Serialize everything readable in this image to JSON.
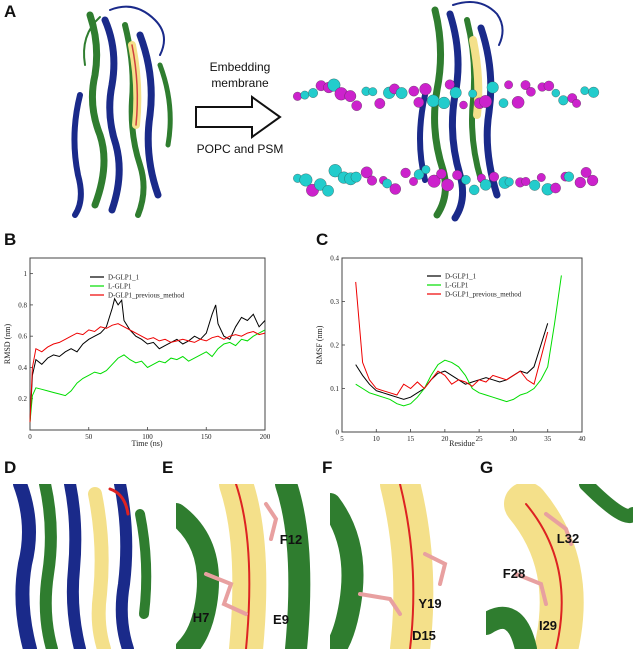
{
  "panels": {
    "A": "A",
    "B": "B",
    "C": "C",
    "D": "D",
    "E": "E",
    "F": "F",
    "G": "G"
  },
  "panel_a": {
    "arrow_line1": "Embedding",
    "arrow_line2": "membrane",
    "arrow_caption": "POPC and PSM"
  },
  "residue_labels": {
    "E": [
      "F12",
      "H7",
      "E9"
    ],
    "F": [
      "Y19",
      "D15"
    ],
    "G": [
      "L32",
      "F28",
      "I29"
    ]
  },
  "colors": {
    "black_series": "#000000",
    "green_series": "#00dd00",
    "red_series": "#ee0000",
    "lipid_magenta": "#cc22cc",
    "lipid_cyan": "#22cccc",
    "helix_blue": "#1a2a8a",
    "helix_green": "#2f7d2f",
    "peptide_yellow": "#f4e08a"
  },
  "chart_data": [
    {
      "type": "line",
      "panel": "B",
      "xlabel": "Time (ns)",
      "ylabel": "RMSD (nm)",
      "xlim": [
        0,
        200
      ],
      "ylim": [
        0,
        1.1
      ],
      "xticks": [
        0,
        50,
        100,
        150,
        200
      ],
      "yticks": [
        0.2,
        0.4,
        0.6,
        0.8,
        1
      ],
      "legend": [
        "D-GLP1_1",
        "L-GLP1",
        "D-GLP1_previous_method"
      ],
      "legend_position": "top-center",
      "series": [
        {
          "name": "D-GLP1_1",
          "color": "#000000",
          "x": [
            0,
            2,
            5,
            10,
            15,
            20,
            25,
            30,
            35,
            40,
            45,
            50,
            55,
            60,
            65,
            70,
            72,
            75,
            78,
            80,
            85,
            90,
            95,
            100,
            105,
            110,
            115,
            120,
            125,
            130,
            135,
            140,
            145,
            150,
            155,
            158,
            160,
            165,
            170,
            175,
            180,
            185,
            190,
            195,
            200
          ],
          "y": [
            0.05,
            0.35,
            0.45,
            0.42,
            0.46,
            0.48,
            0.47,
            0.5,
            0.52,
            0.5,
            0.55,
            0.58,
            0.6,
            0.62,
            0.66,
            0.78,
            0.84,
            0.8,
            0.83,
            0.7,
            0.64,
            0.6,
            0.58,
            0.55,
            0.56,
            0.52,
            0.54,
            0.56,
            0.58,
            0.55,
            0.57,
            0.6,
            0.58,
            0.62,
            0.74,
            0.8,
            0.68,
            0.6,
            0.58,
            0.66,
            0.72,
            0.7,
            0.74,
            0.66,
            0.7
          ]
        },
        {
          "name": "L-GLP1",
          "color": "#00dd00",
          "x": [
            0,
            2,
            5,
            10,
            15,
            20,
            25,
            30,
            35,
            40,
            45,
            50,
            55,
            60,
            65,
            70,
            75,
            80,
            85,
            90,
            95,
            100,
            105,
            110,
            115,
            120,
            125,
            130,
            135,
            140,
            145,
            150,
            155,
            160,
            165,
            170,
            175,
            180,
            185,
            190,
            195,
            200
          ],
          "y": [
            0.05,
            0.22,
            0.27,
            0.26,
            0.25,
            0.24,
            0.23,
            0.22,
            0.25,
            0.3,
            0.33,
            0.35,
            0.37,
            0.36,
            0.38,
            0.42,
            0.46,
            0.48,
            0.45,
            0.43,
            0.44,
            0.4,
            0.42,
            0.44,
            0.43,
            0.46,
            0.45,
            0.47,
            0.44,
            0.46,
            0.48,
            0.5,
            0.47,
            0.52,
            0.55,
            0.56,
            0.54,
            0.58,
            0.57,
            0.6,
            0.62,
            0.64
          ]
        },
        {
          "name": "D-GLP1_previous_method",
          "color": "#ee0000",
          "x": [
            0,
            2,
            5,
            10,
            15,
            20,
            25,
            30,
            35,
            40,
            45,
            50,
            55,
            60,
            65,
            70,
            75,
            80,
            85,
            90,
            95,
            100,
            105,
            110,
            115,
            120,
            125,
            130,
            135,
            140,
            145,
            150,
            155,
            160,
            165,
            170,
            175,
            180,
            185,
            190,
            195,
            200
          ],
          "y": [
            0.05,
            0.4,
            0.52,
            0.5,
            0.53,
            0.55,
            0.56,
            0.58,
            0.6,
            0.62,
            0.61,
            0.64,
            0.63,
            0.66,
            0.65,
            0.67,
            0.68,
            0.66,
            0.64,
            0.62,
            0.6,
            0.58,
            0.59,
            0.57,
            0.58,
            0.56,
            0.57,
            0.58,
            0.57,
            0.56,
            0.58,
            0.57,
            0.59,
            0.6,
            0.58,
            0.6,
            0.61,
            0.6,
            0.62,
            0.63,
            0.61,
            0.62
          ]
        }
      ]
    },
    {
      "type": "line",
      "panel": "C",
      "xlabel": "Residue",
      "ylabel": "RMSF (nm)",
      "xlim": [
        5,
        40
      ],
      "ylim": [
        0,
        0.4
      ],
      "xticks": [
        5,
        10,
        15,
        20,
        25,
        30,
        35,
        40
      ],
      "yticks": [
        0,
        0.1,
        0.2,
        0.3,
        0.4
      ],
      "legend": [
        "D-GLP1_1",
        "L-GLP1",
        "D-GLP1_previous_method"
      ],
      "legend_position": "top-center",
      "series": [
        {
          "name": "D-GLP1_1",
          "color": "#000000",
          "x": [
            7,
            8,
            9,
            10,
            11,
            12,
            13,
            14,
            15,
            16,
            17,
            18,
            19,
            20,
            21,
            22,
            23,
            24,
            25,
            26,
            27,
            28,
            29,
            30,
            31,
            32,
            33,
            34,
            35
          ],
          "y": [
            0.155,
            0.13,
            0.11,
            0.095,
            0.09,
            0.085,
            0.08,
            0.075,
            0.08,
            0.09,
            0.1,
            0.12,
            0.135,
            0.14,
            0.13,
            0.12,
            0.11,
            0.115,
            0.12,
            0.125,
            0.12,
            0.115,
            0.12,
            0.13,
            0.14,
            0.135,
            0.15,
            0.2,
            0.25
          ]
        },
        {
          "name": "L-GLP1",
          "color": "#00dd00",
          "x": [
            7,
            8,
            9,
            10,
            11,
            12,
            13,
            14,
            15,
            16,
            17,
            18,
            19,
            20,
            21,
            22,
            23,
            24,
            25,
            26,
            27,
            28,
            29,
            30,
            31,
            32,
            33,
            34,
            35,
            36,
            37
          ],
          "y": [
            0.11,
            0.1,
            0.09,
            0.085,
            0.08,
            0.075,
            0.065,
            0.06,
            0.065,
            0.08,
            0.1,
            0.13,
            0.155,
            0.165,
            0.16,
            0.15,
            0.13,
            0.1,
            0.09,
            0.085,
            0.08,
            0.075,
            0.07,
            0.075,
            0.085,
            0.09,
            0.1,
            0.12,
            0.15,
            0.25,
            0.36
          ]
        },
        {
          "name": "D-GLP1_previous_method",
          "color": "#ee0000",
          "x": [
            7,
            8,
            9,
            10,
            11,
            12,
            13,
            14,
            15,
            16,
            17,
            18,
            19,
            20,
            21,
            22,
            23,
            24,
            25,
            26,
            27,
            28,
            29,
            30,
            31,
            32,
            33,
            34,
            35
          ],
          "y": [
            0.345,
            0.16,
            0.12,
            0.1,
            0.095,
            0.09,
            0.085,
            0.11,
            0.1,
            0.115,
            0.1,
            0.12,
            0.14,
            0.13,
            0.11,
            0.12,
            0.115,
            0.105,
            0.12,
            0.115,
            0.13,
            0.125,
            0.12,
            0.13,
            0.14,
            0.12,
            0.11,
            0.17,
            0.23
          ]
        }
      ]
    }
  ]
}
